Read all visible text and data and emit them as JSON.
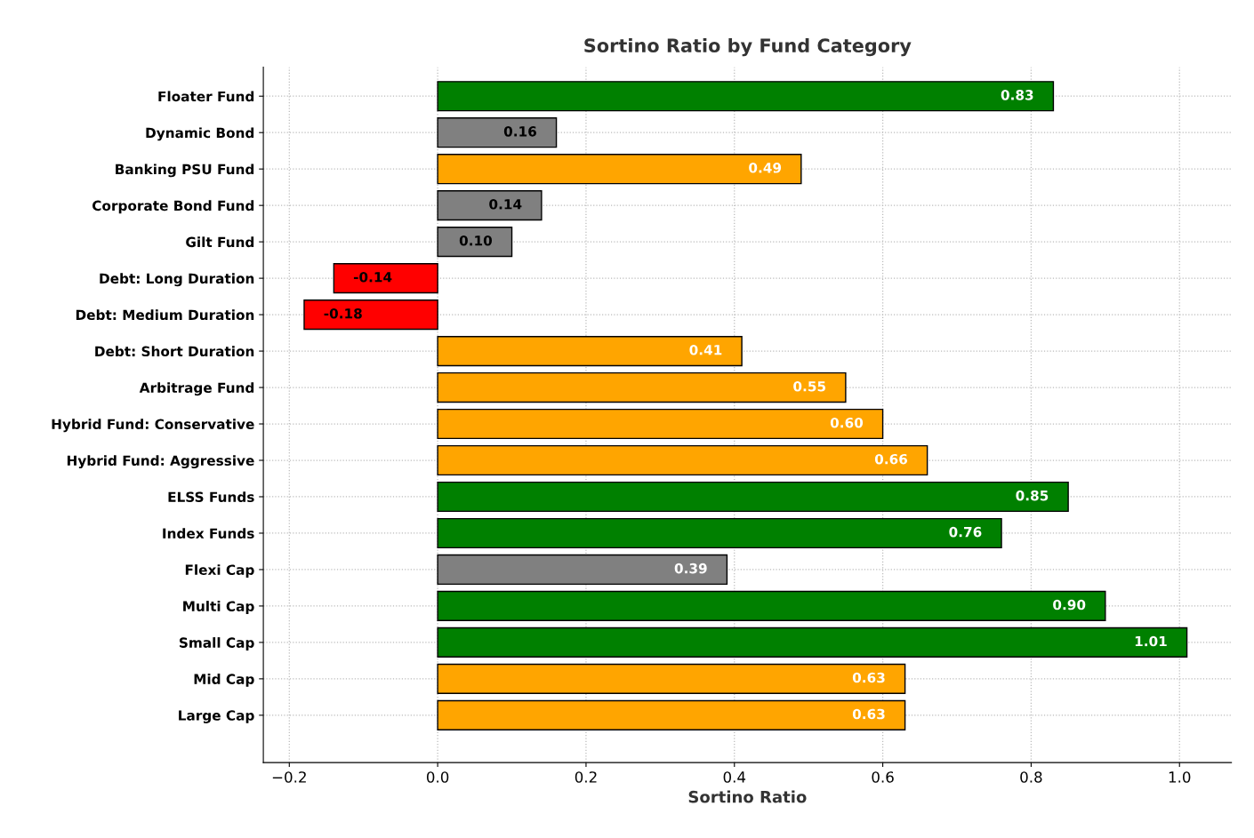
{
  "chart_data": {
    "type": "bar",
    "orientation": "horizontal",
    "title": "Sortino Ratio by Fund Category",
    "xlabel": "Sortino Ratio",
    "categories": [
      "Floater Fund",
      "Dynamic Bond",
      "Banking PSU Fund",
      "Corporate Bond Fund",
      "Gilt Fund",
      "Debt: Long Duration",
      "Debt: Medium Duration",
      "Debt: Short Duration",
      "Arbitrage Fund",
      "Hybrid Fund: Conservative",
      "Hybrid Fund: Aggressive",
      "ELSS Funds",
      "Index Funds",
      "Flexi Cap",
      "Multi Cap",
      "Small Cap",
      "Mid Cap",
      "Large Cap"
    ],
    "values": [
      0.83,
      0.16,
      0.49,
      0.14,
      0.1,
      -0.14,
      -0.18,
      0.41,
      0.55,
      0.6,
      0.66,
      0.85,
      0.76,
      0.39,
      0.9,
      1.01,
      0.63,
      0.63
    ],
    "value_labels": [
      "0.83",
      "0.16",
      "0.49",
      "0.14",
      "0.10",
      "-0.14",
      "-0.18",
      "0.41",
      "0.55",
      "0.60",
      "0.66",
      "0.85",
      "0.76",
      "0.39",
      "0.90",
      "1.01",
      "0.63",
      "0.63"
    ],
    "colors": [
      "#008000",
      "#808080",
      "#ffa500",
      "#808080",
      "#808080",
      "#ff0000",
      "#ff0000",
      "#ffa500",
      "#ffa500",
      "#ffa500",
      "#ffa500",
      "#008000",
      "#008000",
      "#808080",
      "#008000",
      "#008000",
      "#ffa500",
      "#ffa500"
    ],
    "xlim": [
      -0.235,
      1.07
    ],
    "xticks": [
      {
        "value": -0.2,
        "label": "−0.2"
      },
      {
        "value": 0.0,
        "label": "0.0"
      },
      {
        "value": 0.2,
        "label": "0.2"
      },
      {
        "value": 0.4,
        "label": "0.4"
      },
      {
        "value": 0.6,
        "label": "0.6"
      },
      {
        "value": 0.8,
        "label": "0.8"
      },
      {
        "value": 1.0,
        "label": "1.0"
      }
    ],
    "grid": true
  }
}
